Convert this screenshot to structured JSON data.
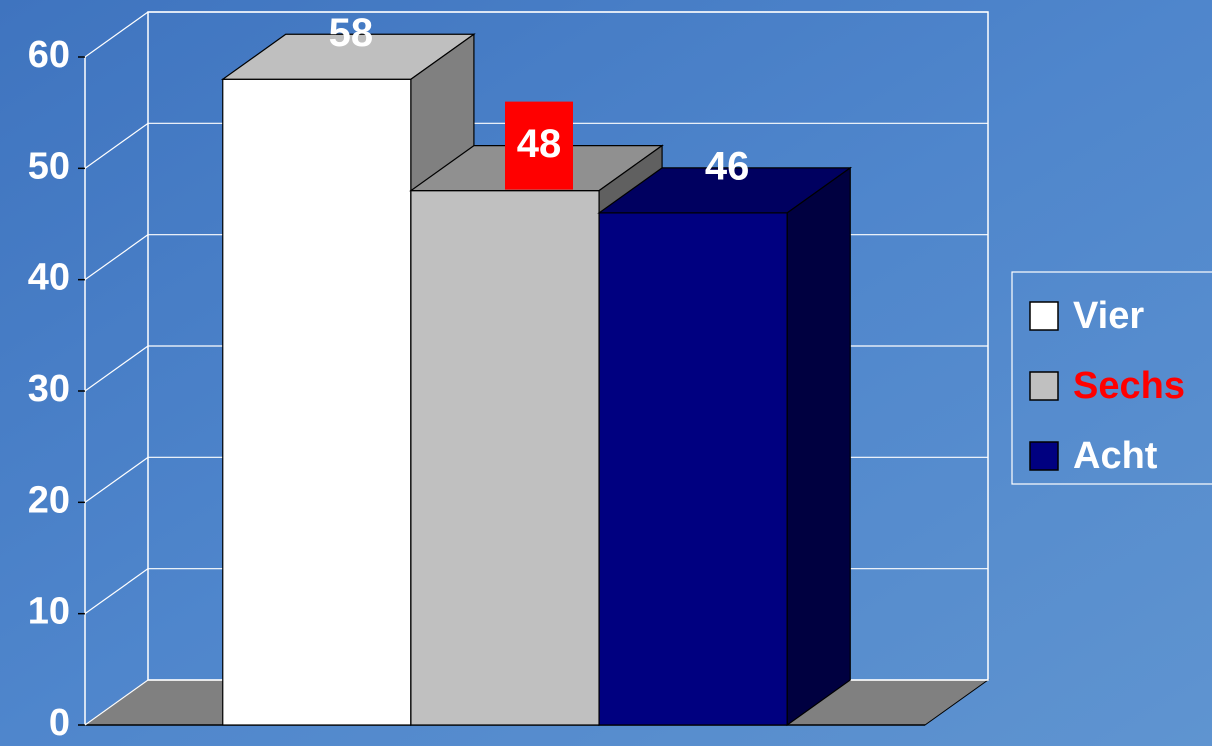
{
  "chart_data": {
    "type": "bar3d",
    "categories": [
      null
    ],
    "series": [
      {
        "name": "Vier",
        "color": "#ffffff",
        "values": [
          58
        ]
      },
      {
        "name": "Sechs",
        "color": "#c0c0c0",
        "values": [
          48
        ],
        "label_color": "#ff0000",
        "value_label_background": "#ff0000"
      },
      {
        "name": "Acht",
        "color": "#000080",
        "values": [
          46
        ]
      }
    ],
    "ylim": [
      0,
      60
    ],
    "yticks": [
      0,
      10,
      20,
      30,
      40,
      50,
      60
    ],
    "grid": true,
    "legend": "right"
  }
}
